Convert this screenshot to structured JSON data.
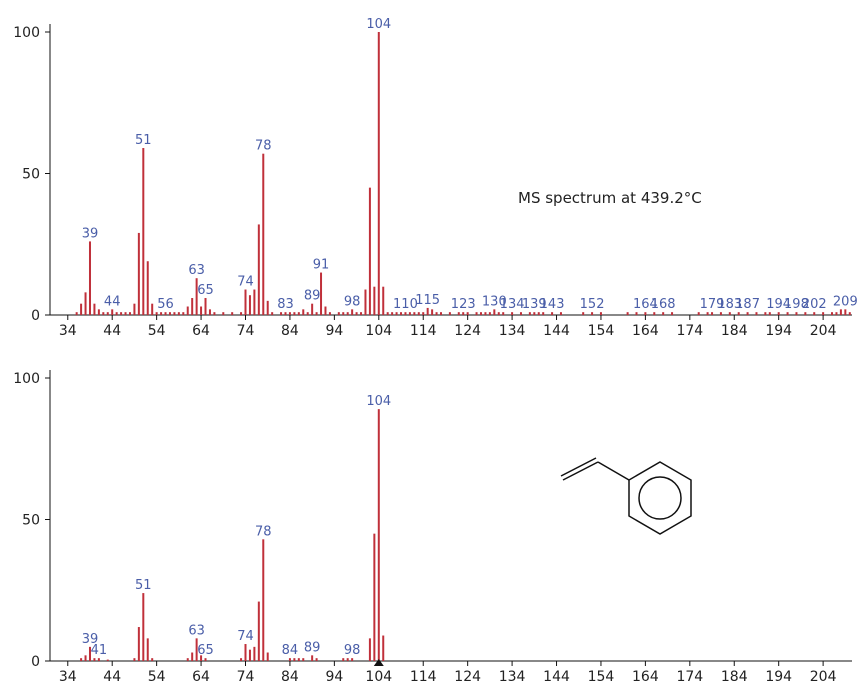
{
  "chart_data": [
    {
      "type": "bar",
      "annotation": "MS spectrum at 439.2°C",
      "color": "#c0303a",
      "label_color": "#4a5ea8",
      "x": [
        36,
        37,
        38,
        39,
        40,
        41,
        42,
        43,
        44,
        45,
        46,
        47,
        48,
        49,
        50,
        51,
        52,
        53,
        54,
        55,
        56,
        57,
        58,
        59,
        60,
        61,
        62,
        63,
        64,
        65,
        66,
        67,
        69,
        71,
        73,
        74,
        75,
        76,
        77,
        78,
        79,
        80,
        82,
        83,
        84,
        85,
        86,
        87,
        88,
        89,
        90,
        91,
        92,
        93,
        95,
        96,
        97,
        98,
        99,
        100,
        101,
        102,
        103,
        104,
        105,
        106,
        107,
        108,
        109,
        110,
        111,
        112,
        113,
        114,
        115,
        116,
        117,
        118,
        120,
        122,
        123,
        124,
        126,
        127,
        128,
        129,
        130,
        131,
        132,
        134,
        136,
        138,
        139,
        140,
        141,
        143,
        145,
        150,
        152,
        154,
        160,
        162,
        164,
        166,
        168,
        170,
        176,
        178,
        179,
        181,
        183,
        185,
        187,
        189,
        191,
        192,
        194,
        196,
        198,
        200,
        202,
        204,
        206,
        207,
        208,
        209,
        210
      ],
      "values": [
        1,
        4,
        8,
        26,
        4,
        2,
        1,
        1,
        2,
        1,
        1,
        1,
        1,
        4,
        29,
        59,
        19,
        4,
        1,
        1,
        1,
        1,
        1,
        1,
        1,
        3,
        6,
        13,
        3,
        6,
        2,
        1,
        1,
        1,
        1,
        9,
        7,
        9,
        32,
        57,
        5,
        1,
        1,
        1,
        1,
        1,
        1,
        2,
        1,
        4,
        1,
        15,
        3,
        1,
        1,
        1,
        1,
        2,
        1,
        1,
        9,
        45,
        10,
        100,
        10,
        1,
        1,
        1,
        1,
        1,
        1,
        1,
        1,
        1,
        2.5,
        2,
        1,
        1,
        1,
        1,
        1,
        1,
        1,
        1,
        1,
        1,
        2,
        1,
        1,
        1,
        1,
        1,
        1,
        1,
        1,
        1,
        1,
        1,
        1,
        1,
        1,
        1,
        1,
        1,
        1,
        1,
        1,
        1,
        1,
        1,
        1,
        1,
        1,
        1,
        1,
        1,
        1,
        1,
        1,
        1,
        1,
        1,
        1,
        1,
        2,
        2,
        1
      ],
      "peak_labels": [
        39,
        44,
        51,
        56,
        63,
        65,
        74,
        78,
        83,
        89,
        91,
        98,
        104,
        110,
        115,
        123,
        130,
        134,
        139,
        143,
        152,
        164,
        168,
        179,
        183,
        187,
        194,
        198,
        202,
        209
      ],
      "xlim": [
        30,
        210.5
      ],
      "ylim": [
        0,
        100
      ],
      "yticks": [
        0,
        50,
        100
      ],
      "xticks": [
        34,
        44,
        54,
        64,
        74,
        84,
        94,
        104,
        114,
        124,
        134,
        144,
        154,
        164,
        174,
        184,
        194,
        204
      ]
    },
    {
      "type": "bar",
      "color": "#c0303a",
      "label_color": "#4a5ea8",
      "x": [
        37,
        38,
        39,
        40,
        41,
        43,
        49,
        50,
        51,
        52,
        53,
        61,
        62,
        63,
        64,
        65,
        73,
        74,
        75,
        76,
        77,
        78,
        79,
        84,
        85,
        86,
        87,
        89,
        90,
        96,
        97,
        98,
        102,
        103,
        104,
        105
      ],
      "values": [
        1,
        2,
        5,
        1,
        1,
        0.5,
        1,
        12,
        24,
        8,
        1,
        1,
        3,
        8,
        2,
        1,
        1,
        6,
        4,
        5,
        21,
        43,
        3,
        1,
        1,
        1,
        1,
        2,
        1,
        1,
        1,
        1,
        8,
        45,
        89,
        9
      ],
      "peak_labels": [
        39,
        41,
        51,
        63,
        65,
        74,
        78,
        84,
        89,
        98,
        104
      ],
      "xlim": [
        30,
        210.5
      ],
      "ylim": [
        0,
        100
      ],
      "yticks": [
        0,
        50,
        100
      ],
      "xticks": [
        34,
        44,
        54,
        64,
        74,
        84,
        94,
        104,
        114,
        124,
        134,
        144,
        154,
        164,
        174,
        184,
        194,
        204
      ]
    }
  ]
}
